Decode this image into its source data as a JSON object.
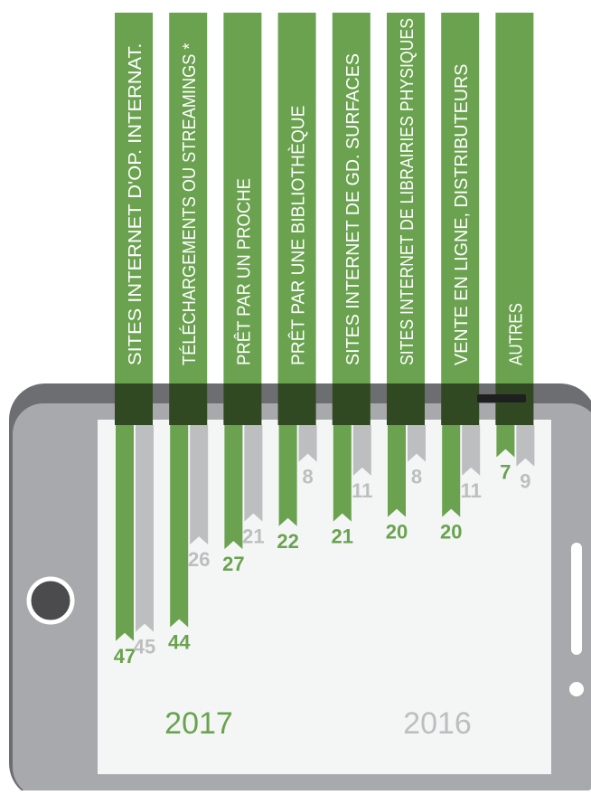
{
  "colors": {
    "series_2017": "#6aa24f",
    "series_2016": "#bcbec0",
    "phone_body": "#a7a9ac",
    "phone_rim": "#6d6e71",
    "screen": "#f3f6f5",
    "bg": "#ffffff"
  },
  "icons": {
    "home_button": "phone-home-button-icon",
    "side_button": "phone-side-button-icon",
    "speaker": "phone-speaker-icon"
  },
  "chart_data": {
    "type": "bar",
    "categories": [
      "SITES  INTERNET D'OP. INTERNAT.",
      "TÉLÉCHARGEMENTS OU STREAMINGS *",
      "PRÊT PAR UN PROCHE",
      "PRÊT PAR UNE BIBLIOTHÈQUE",
      "SITES INTERNET DE GD. SURFACES",
      "SITES INTERNET DE LIBRAIRIES PHYSIQUES",
      "VENTE EN LIGNE, DISTRIBUTEURS",
      "AUTRES"
    ],
    "series": [
      {
        "name": "2017",
        "values": [
          47,
          44,
          27,
          22,
          21,
          20,
          20,
          7
        ]
      },
      {
        "name": "2016",
        "values": [
          45,
          26,
          21,
          8,
          11,
          8,
          11,
          9
        ]
      }
    ],
    "ylim": [
      0,
      50
    ],
    "grid": false,
    "legend": "bottom"
  }
}
